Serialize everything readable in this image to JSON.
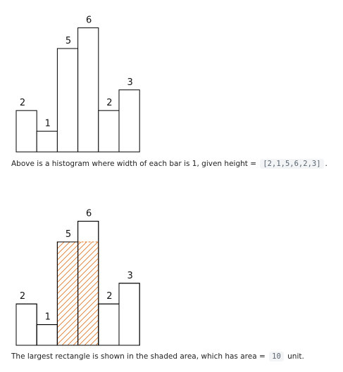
{
  "chart_data": [
    {
      "type": "bar",
      "heights": [
        2,
        1,
        5,
        6,
        2,
        3
      ],
      "labels": [
        "2",
        "1",
        "5",
        "6",
        "2",
        "3"
      ],
      "shaded_bars": []
    },
    {
      "type": "bar",
      "heights": [
        2,
        1,
        5,
        6,
        2,
        3
      ],
      "labels": [
        "2",
        "1",
        "5",
        "6",
        "2",
        "3"
      ],
      "shaded_bars": [
        2,
        3
      ],
      "shaded_height": 5,
      "shade_color": "#e07a2a"
    }
  ],
  "captions": {
    "histogram": {
      "before": "Above is a histogram where width of each bar is 1, given height = ",
      "code": "[2,1,5,6,2,3]",
      "after": "."
    },
    "answer": {
      "before": "The largest rectangle is shown in the shaded area, which has area = ",
      "code": "10",
      "after": " unit."
    }
  }
}
